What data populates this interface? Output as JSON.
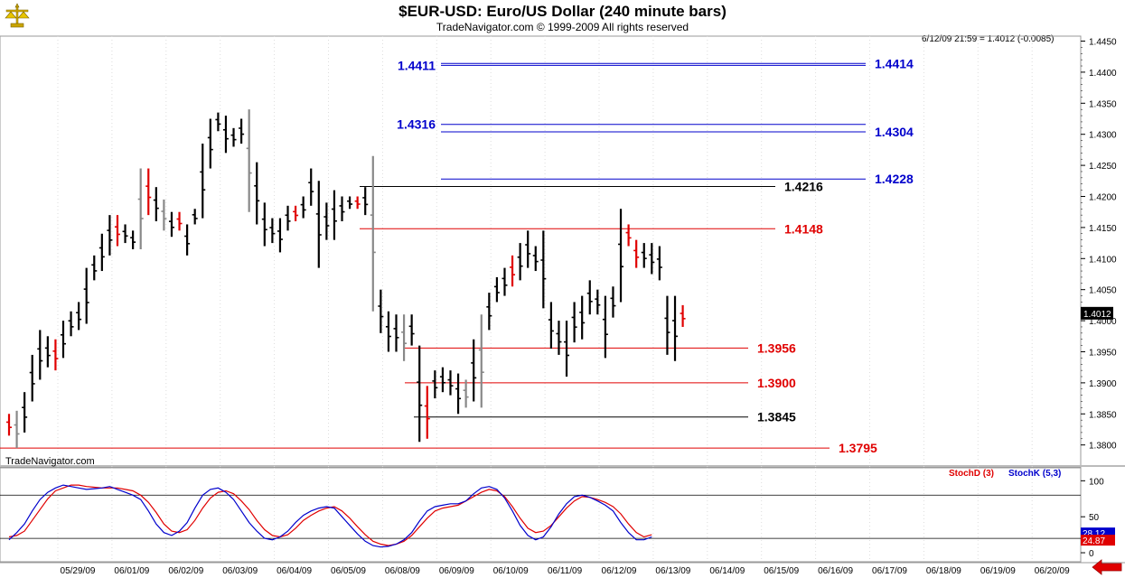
{
  "header": {
    "title": "$EUR-USD:  Euro/US Dollar  (240 minute bars)",
    "subtitle": "TradeNavigator.com © 1999-2009 All rights reserved",
    "quote": "6/12/09 21:59 = 1.4012 (-0.0085)"
  },
  "footer": {
    "brand": "TradeNavigator.com"
  },
  "colors": {
    "up_bar": "#000000",
    "down_bar": "#e00000",
    "neutral_bar": "#888888",
    "blue_level": "#0000cc",
    "red_level": "#e00000",
    "black_level": "#000000",
    "stoch_d": "#e00000",
    "stoch_k": "#0000cc"
  },
  "icons": {
    "logo": "gold-scale-logo",
    "nav": "red-left-arrow-icon"
  },
  "chart_data": [
    {
      "type": "ohlc",
      "title": "$EUR-USD:  Euro/US Dollar  (240 minute bars)",
      "ylim": [
        1.3785,
        1.4458
      ],
      "y_ticks": [
        1.445,
        1.44,
        1.435,
        1.43,
        1.425,
        1.42,
        1.415,
        1.41,
        1.405,
        1.4,
        1.395,
        1.39,
        1.385,
        1.38
      ],
      "y_tick_labels": [
        "1.4450",
        "1.4400",
        "1.4350",
        "1.4300",
        "1.4250",
        "1.4200",
        "1.4150",
        "1.4100",
        "1.4050",
        "1.4000",
        "1.3950",
        "1.3900",
        "1.3850",
        "1.3800"
      ],
      "last_price": "1.4012",
      "x_labels": [
        "05/29/09",
        "06/01/09",
        "06/02/09",
        "06/03/09",
        "06/04/09",
        "06/05/09",
        "06/08/09",
        "06/09/09",
        "06/10/09",
        "06/11/09",
        "06/12/09",
        "06/13/09",
        "06/14/09",
        "06/15/09",
        "06/16/09",
        "06/17/09",
        "06/18/09",
        "06/19/09",
        "06/20/09"
      ],
      "bars": [
        [
          1.385,
          1.3815,
          "d"
        ],
        [
          1.3855,
          1.3795,
          "n"
        ],
        [
          1.3885,
          1.382,
          "u"
        ],
        [
          1.3945,
          1.387,
          "u"
        ],
        [
          1.3985,
          1.3905,
          "u"
        ],
        [
          1.3975,
          1.3925,
          "u"
        ],
        [
          1.397,
          1.392,
          "d"
        ],
        [
          1.4,
          1.394,
          "u"
        ],
        [
          1.4015,
          1.3975,
          "u"
        ],
        [
          1.403,
          1.3985,
          "u"
        ],
        [
          1.4085,
          1.3995,
          "u"
        ],
        [
          1.4105,
          1.4065,
          "u"
        ],
        [
          1.414,
          1.408,
          "u"
        ],
        [
          1.417,
          1.4105,
          "u"
        ],
        [
          1.417,
          1.412,
          "d"
        ],
        [
          1.4155,
          1.4125,
          "u"
        ],
        [
          1.4145,
          1.4115,
          "u"
        ],
        [
          1.4245,
          1.4115,
          "n"
        ],
        [
          1.4245,
          1.417,
          "d"
        ],
        [
          1.4215,
          1.416,
          "u"
        ],
        [
          1.4195,
          1.4145,
          "n"
        ],
        [
          1.4175,
          1.4135,
          "u"
        ],
        [
          1.4175,
          1.4145,
          "d"
        ],
        [
          1.4155,
          1.4105,
          "u"
        ],
        [
          1.418,
          1.4155,
          "u"
        ],
        [
          1.4285,
          1.4165,
          "u"
        ],
        [
          1.4325,
          1.4245,
          "u"
        ],
        [
          1.4335,
          1.4305,
          "u"
        ],
        [
          1.433,
          1.427,
          "u"
        ],
        [
          1.431,
          1.428,
          "u"
        ],
        [
          1.4325,
          1.4285,
          "u"
        ],
        [
          1.434,
          1.4175,
          "n"
        ],
        [
          1.4255,
          1.4155,
          "u"
        ],
        [
          1.419,
          1.412,
          "u"
        ],
        [
          1.4165,
          1.4125,
          "u"
        ],
        [
          1.4165,
          1.411,
          "u"
        ],
        [
          1.4185,
          1.4145,
          "u"
        ],
        [
          1.4185,
          1.416,
          "d"
        ],
        [
          1.42,
          1.4165,
          "u"
        ],
        [
          1.4245,
          1.4185,
          "u"
        ],
        [
          1.4225,
          1.4085,
          "u"
        ],
        [
          1.419,
          1.413,
          "u"
        ],
        [
          1.421,
          1.413,
          "u"
        ],
        [
          1.42,
          1.416,
          "u"
        ],
        [
          1.42,
          1.418,
          "u"
        ],
        [
          1.42,
          1.418,
          "d"
        ],
        [
          1.4215,
          1.417,
          "u"
        ],
        [
          1.4265,
          1.4015,
          "n"
        ],
        [
          1.405,
          1.398,
          "u"
        ],
        [
          1.4015,
          1.395,
          "u"
        ],
        [
          1.401,
          1.395,
          "u"
        ],
        [
          1.401,
          1.3935,
          "n"
        ],
        [
          1.401,
          1.396,
          "u"
        ],
        [
          1.396,
          1.3805,
          "u"
        ],
        [
          1.3895,
          1.381,
          "d"
        ],
        [
          1.392,
          1.3875,
          "u"
        ],
        [
          1.3925,
          1.3885,
          "u"
        ],
        [
          1.392,
          1.388,
          "u"
        ],
        [
          1.3915,
          1.385,
          "u"
        ],
        [
          1.3905,
          1.386,
          "n"
        ],
        [
          1.397,
          1.387,
          "u"
        ],
        [
          1.401,
          1.386,
          "n"
        ],
        [
          1.4045,
          1.3985,
          "u"
        ],
        [
          1.407,
          1.403,
          "u"
        ],
        [
          1.4085,
          1.404,
          "u"
        ],
        [
          1.4105,
          1.4055,
          "d"
        ],
        [
          1.4125,
          1.4065,
          "u"
        ],
        [
          1.4145,
          1.4085,
          "u"
        ],
        [
          1.412,
          1.408,
          "u"
        ],
        [
          1.4145,
          1.402,
          "u"
        ],
        [
          1.403,
          1.3955,
          "u"
        ],
        [
          1.4,
          1.3945,
          "u"
        ],
        [
          1.4,
          1.391,
          "u"
        ],
        [
          1.403,
          1.3965,
          "u"
        ],
        [
          1.404,
          1.397,
          "u"
        ],
        [
          1.4065,
          1.401,
          "u"
        ],
        [
          1.405,
          1.401,
          "u"
        ],
        [
          1.404,
          1.394,
          "u"
        ],
        [
          1.4055,
          1.4005,
          "u"
        ],
        [
          1.418,
          1.403,
          "u"
        ],
        [
          1.4155,
          1.412,
          "d"
        ],
        [
          1.413,
          1.4085,
          "d"
        ],
        [
          1.4125,
          1.4085,
          "u"
        ],
        [
          1.4125,
          1.4075,
          "u"
        ],
        [
          1.412,
          1.4065,
          "u"
        ],
        [
          1.404,
          1.3945,
          "u"
        ],
        [
          1.404,
          1.3935,
          "u"
        ],
        [
          1.4025,
          1.399,
          "d"
        ]
      ],
      "levels": [
        {
          "value": "1.4414",
          "price": 1.4414,
          "style": "blue-double",
          "label_side": "right"
        },
        {
          "value": "1.4411",
          "price": 1.4411,
          "style": "blue",
          "label_side": "left"
        },
        {
          "value": "1.4316",
          "price": 1.4316,
          "style": "blue",
          "label_side": "left"
        },
        {
          "value": "1.4304",
          "price": 1.4304,
          "style": "blue",
          "label_side": "right"
        },
        {
          "value": "1.4228",
          "price": 1.4228,
          "style": "blue",
          "label_side": "right"
        },
        {
          "value": "1.4216",
          "price": 1.4216,
          "style": "black",
          "label_side": "mid"
        },
        {
          "value": "1.4148",
          "price": 1.4148,
          "style": "red",
          "label_side": "mid"
        },
        {
          "value": "1.3956",
          "price": 1.3956,
          "style": "red",
          "label_side": "mid"
        },
        {
          "value": "1.3900",
          "price": 1.39,
          "style": "red",
          "label_side": "mid"
        },
        {
          "value": "1.3845",
          "price": 1.3845,
          "style": "black",
          "label_side": "mid"
        },
        {
          "value": "1.3795",
          "price": 1.3795,
          "style": "red",
          "label_side": "mid"
        }
      ]
    },
    {
      "type": "line",
      "title": "",
      "ylim": [
        -10,
        118
      ],
      "y_ticks": [
        100,
        50,
        0
      ],
      "y_tick_labels": [
        "100",
        "50",
        "0"
      ],
      "reference_lines": [
        80,
        20
      ],
      "series": [
        {
          "name": "StochD (3)",
          "values": [
            22,
            24,
            30,
            45,
            60,
            75,
            86,
            90,
            94,
            94,
            92,
            91,
            90,
            90,
            90,
            88,
            86,
            80,
            70,
            56,
            40,
            30,
            28,
            32,
            45,
            62,
            76,
            84,
            86,
            82,
            72,
            60,
            45,
            32,
            24,
            22,
            25,
            34,
            45,
            52,
            58,
            62,
            64,
            58,
            48,
            36,
            25,
            16,
            12,
            10,
            12,
            16,
            24,
            36,
            48,
            58,
            62,
            64,
            66,
            72,
            78,
            84,
            88,
            86,
            78,
            64,
            48,
            34,
            28,
            30,
            38,
            50,
            62,
            72,
            78,
            77,
            74,
            70,
            64,
            54,
            40,
            28,
            22,
            25
          ]
        },
        {
          "name": "StochK (5,3)",
          "values": [
            18,
            28,
            40,
            58,
            74,
            84,
            90,
            94,
            92,
            90,
            88,
            89,
            90,
            92,
            88,
            84,
            80,
            74,
            58,
            40,
            28,
            24,
            30,
            42,
            62,
            80,
            88,
            90,
            84,
            74,
            58,
            42,
            30,
            20,
            18,
            22,
            30,
            42,
            52,
            58,
            62,
            64,
            62,
            50,
            38,
            26,
            16,
            10,
            8,
            9,
            12,
            18,
            28,
            44,
            58,
            64,
            66,
            68,
            68,
            72,
            82,
            90,
            92,
            88,
            76,
            58,
            38,
            24,
            18,
            22,
            36,
            54,
            68,
            78,
            80,
            77,
            72,
            66,
            58,
            42,
            28,
            18,
            18,
            22
          ]
        }
      ],
      "last_values": [
        "28.12",
        "24.87"
      ]
    }
  ]
}
